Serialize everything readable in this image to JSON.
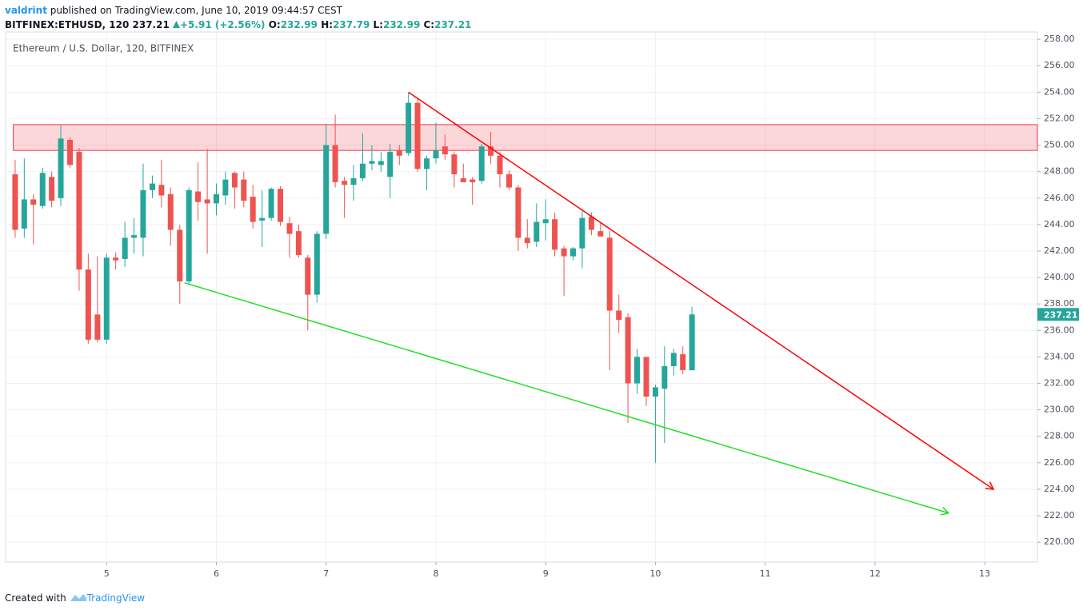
{
  "header": {
    "author": "valdrint",
    "published": "published on TradingView.com, June 10, 2019 09:44:57 CEST",
    "symbol": "BITFINEX:ETHUSD, 120",
    "change": "+5.91 (+2.56%)",
    "ohlc_labels": [
      "O:",
      "H:",
      "L:",
      "C:"
    ]
  },
  "footer": {
    "created": "Created with",
    "brand": "TradingView"
  },
  "chart_data": {
    "type": "candlestick",
    "title": "Ethereum / U.S. Dollar, 120, BITFINEX",
    "up_color": "#26a69a",
    "down_color": "#ef5350",
    "grid": true,
    "x": [
      4.167,
      4.25,
      4.333,
      4.417,
      4.5,
      4.583,
      4.667,
      4.75,
      4.833,
      4.917,
      5,
      5.083,
      5.167,
      5.25,
      5.333,
      5.417,
      5.5,
      5.583,
      5.667,
      5.75,
      5.833,
      5.917,
      6,
      6.083,
      6.167,
      6.25,
      6.333,
      6.417,
      6.5,
      6.583,
      6.667,
      6.75,
      6.833,
      6.917,
      7,
      7.083,
      7.167,
      7.25,
      7.333,
      7.417,
      7.5,
      7.583,
      7.667,
      7.75,
      7.833,
      7.917,
      8,
      8.083,
      8.167,
      8.25,
      8.333,
      8.417,
      8.5,
      8.583,
      8.667,
      8.75,
      8.833,
      8.917,
      9,
      9.083,
      9.167,
      9.25,
      9.333,
      9.417,
      9.5,
      9.583,
      9.667,
      9.75,
      9.833,
      9.917,
      10,
      10.083,
      10.167,
      10.25,
      10.333
    ],
    "open": [
      247.8,
      243.7,
      245.9,
      245.4,
      247.6,
      246.0,
      250.4,
      249.5,
      240.6,
      237.2,
      235.3,
      241.5,
      241.4,
      243.0,
      243.0,
      246.6,
      247.0,
      246.3,
      243.6,
      239.7,
      246.5,
      245.9,
      245.6,
      246.2,
      247.9,
      247.4,
      246.1,
      244.3,
      244.5,
      246.7,
      244.1,
      243.5,
      241.5,
      238.7,
      243.3,
      250.0,
      247.3,
      247.0,
      247.5,
      248.6,
      248.5,
      247.6,
      249.6,
      249.4,
      253.2,
      248.2,
      249.0,
      249.9,
      249.3,
      247.5,
      247.4,
      247.3,
      249.9,
      249.2,
      247.8,
      246.8,
      243.0,
      242.7,
      244.1,
      244.4,
      242.2,
      241.6,
      242.2,
      244.6,
      243.5,
      243.0,
      237.5,
      237.0,
      232.0,
      234.0,
      231.0,
      231.6,
      233.3,
      234.2,
      232.99
    ],
    "high": [
      248.9,
      249.0,
      246.3,
      248.3,
      248.0,
      251.5,
      250.6,
      249.8,
      241.8,
      241.6,
      241.8,
      241.9,
      244.2,
      244.5,
      248.6,
      247.7,
      248.9,
      246.8,
      244.0,
      246.8,
      248.7,
      249.7,
      247.1,
      248.0,
      248.0,
      248.0,
      247.0,
      246.6,
      246.8,
      246.9,
      244.6,
      244.0,
      241.7,
      243.5,
      251.6,
      252.3,
      247.6,
      248.5,
      250.9,
      250.0,
      249.5,
      250.1,
      250.0,
      254.0,
      253.6,
      249.2,
      251.7,
      250.8,
      249.5,
      248.6,
      247.6,
      250.1,
      251.0,
      249.5,
      248.1,
      247.0,
      244.4,
      245.6,
      245.9,
      244.9,
      242.4,
      242.3,
      245.0,
      244.9,
      244.1,
      243.5,
      238.7,
      237.3,
      234.6,
      234.0,
      231.9,
      234.8,
      234.6,
      234.8,
      237.79
    ],
    "low": [
      243.0,
      243.0,
      242.5,
      245.2,
      245.3,
      245.4,
      248.3,
      239.0,
      235.0,
      235.1,
      235.0,
      240.6,
      240.8,
      241.8,
      241.6,
      246.0,
      245.3,
      242.4,
      238.0,
      239.5,
      244.3,
      241.8,
      244.7,
      245.5,
      245.2,
      245.3,
      243.7,
      242.3,
      244.3,
      243.9,
      241.5,
      241.5,
      236.0,
      238.1,
      242.9,
      246.8,
      244.5,
      245.8,
      247.3,
      248.1,
      248.0,
      246.0,
      248.5,
      249.2,
      248.0,
      246.6,
      248.6,
      248.9,
      246.8,
      247.2,
      245.5,
      247.1,
      248.6,
      246.8,
      246.6,
      242.0,
      242.2,
      242.3,
      242.8,
      241.6,
      238.6,
      241.3,
      240.7,
      243.2,
      243.1,
      233.0,
      235.8,
      229.0,
      231.2,
      230.3,
      226.0,
      227.5,
      232.6,
      232.7,
      232.99
    ],
    "close": [
      243.6,
      245.9,
      245.5,
      247.9,
      245.8,
      250.5,
      248.5,
      240.6,
      235.3,
      235.3,
      241.5,
      241.3,
      243.0,
      243.2,
      246.6,
      247.1,
      246.2,
      243.6,
      239.7,
      246.6,
      245.7,
      245.6,
      246.3,
      247.4,
      246.8,
      245.8,
      244.2,
      244.5,
      246.7,
      244.2,
      243.3,
      241.7,
      238.7,
      243.3,
      250.0,
      247.2,
      247.0,
      247.5,
      248.6,
      248.8,
      248.8,
      249.5,
      249.2,
      253.2,
      248.2,
      249.0,
      249.6,
      249.3,
      247.8,
      247.2,
      247.2,
      249.9,
      249.2,
      247.8,
      246.8,
      243.0,
      242.6,
      244.2,
      244.4,
      242.1,
      241.6,
      242.2,
      244.5,
      243.6,
      243.1,
      237.5,
      236.8,
      232.0,
      234.0,
      231.0,
      231.7,
      233.3,
      234.3,
      233.0,
      237.21
    ],
    "xlim": [
      4.08,
      13.48
    ],
    "ylim": [
      218.5,
      258.55
    ],
    "xticks": [
      5,
      6,
      7,
      8,
      9,
      10,
      11,
      12,
      13
    ],
    "yticks": [
      {
        "value": 220,
        "label": "220.00"
      },
      {
        "value": 222,
        "label": "222.00"
      },
      {
        "value": 224,
        "label": "224.00"
      },
      {
        "value": 226,
        "label": "226.00"
      },
      {
        "value": 228,
        "label": "228.00"
      },
      {
        "value": 230,
        "label": "230.00"
      },
      {
        "value": 232,
        "label": "232.00"
      },
      {
        "value": 234,
        "label": "234.00"
      },
      {
        "value": 236,
        "label": "236.00"
      },
      {
        "value": 238,
        "label": "238.00"
      },
      {
        "value": 240,
        "label": "240.00"
      },
      {
        "value": 242,
        "label": "242.00"
      },
      {
        "value": 244,
        "label": "244.00"
      },
      {
        "value": 246,
        "label": "246.00"
      },
      {
        "value": 248,
        "label": "248.00"
      },
      {
        "value": 250,
        "label": "250.00"
      },
      {
        "value": 252,
        "label": "252.00"
      },
      {
        "value": 254,
        "label": "254.00"
      },
      {
        "value": 256,
        "label": "256.00"
      },
      {
        "value": 258,
        "label": "258.00"
      }
    ],
    "zone": {
      "x": 4.15,
      "y": [
        249.6,
        251.55
      ],
      "color": "#f23645"
    },
    "lines": [
      {
        "color": "#ff0000",
        "x": [
          7.75,
          13.08
        ],
        "y": [
          254.0,
          224.0
        ]
      },
      {
        "color": "#22e022",
        "x": [
          5.71,
          12.67
        ],
        "y": [
          239.6,
          222.2
        ]
      }
    ]
  }
}
